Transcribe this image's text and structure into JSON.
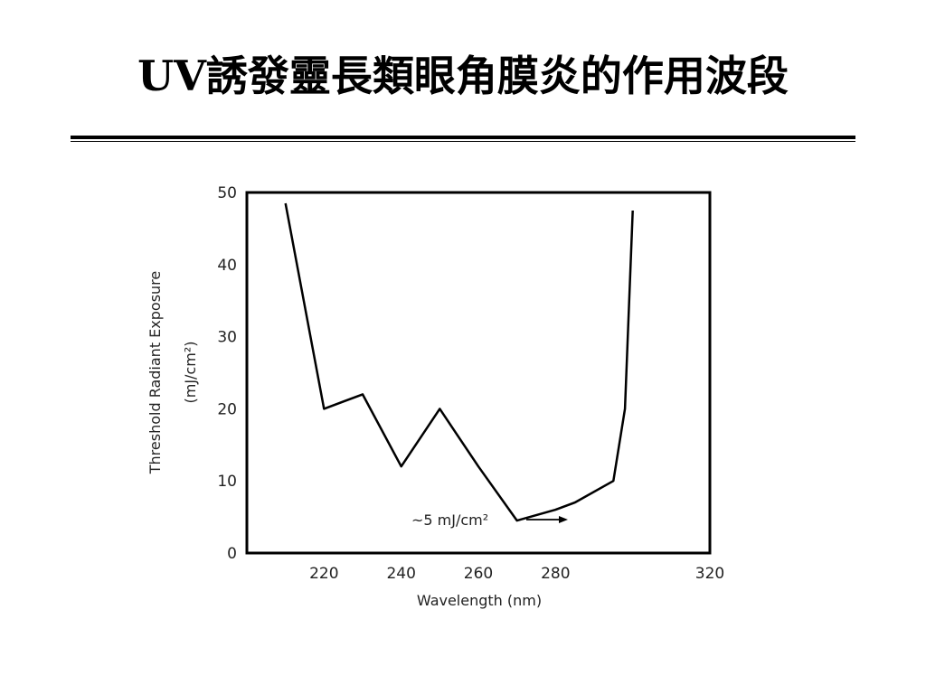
{
  "slide": {
    "title": "UV誘發靈長類眼角膜炎的作用波段"
  },
  "chart_data": {
    "type": "line",
    "title": "",
    "xlabel": "Wavelength (nm)",
    "ylabel": "Threshold Radiant Exposure",
    "ylabel_unit": "(mJ/cm²)",
    "xlim": [
      200,
      320
    ],
    "ylim": [
      0,
      50
    ],
    "x_ticks": [
      220,
      240,
      260,
      280,
      320
    ],
    "y_ticks": [
      0,
      10,
      20,
      30,
      40,
      50
    ],
    "grid": false,
    "legend": "none",
    "line_color": "#000000",
    "series": [
      {
        "x": [
          210,
          220,
          230,
          240,
          250,
          260,
          270,
          280,
          285,
          295,
          298,
          300
        ],
        "y": [
          48.5,
          20,
          22,
          12,
          20,
          12,
          4.5,
          6,
          7,
          10,
          20,
          47.5
        ]
      }
    ],
    "annotation": {
      "text": "~5 mJ/cm²",
      "x": 270,
      "y": 4.5
    }
  }
}
